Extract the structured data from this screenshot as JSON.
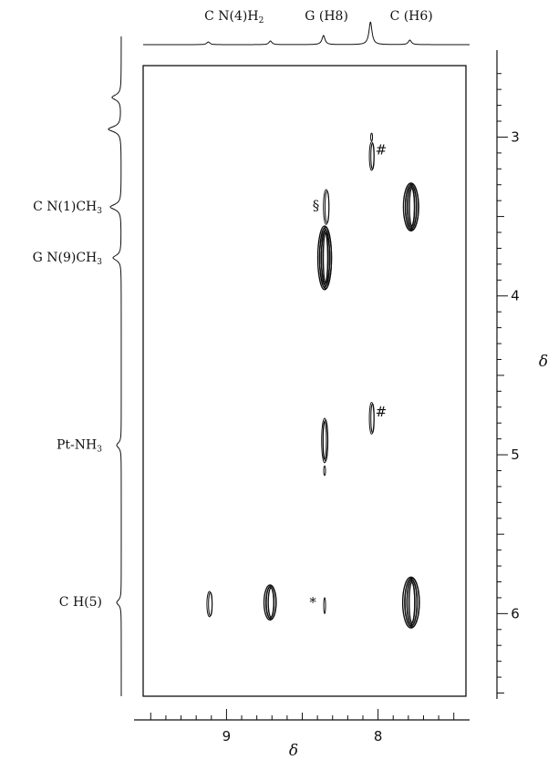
{
  "chart_data": {
    "type": "scatter",
    "title": "",
    "xlabel": "δ",
    "ylabel": "δ",
    "xlim": [
      9.55,
      7.42
    ],
    "ylim": [
      2.55,
      6.52
    ],
    "grid": false,
    "x_ticks": [
      "9",
      "8"
    ],
    "y_ticks": [
      "3",
      "4",
      "5",
      "6"
    ],
    "top_projection_labels": [
      {
        "text": "C N(4)H",
        "sub": "2",
        "x": 8.95
      },
      {
        "text": "G (H8)",
        "sub": "",
        "x": 8.34
      },
      {
        "text": "C (H6)",
        "sub": "",
        "x": 7.78
      }
    ],
    "left_projection_labels": [
      {
        "text": "C N(1)CH",
        "sub": "3",
        "y": 3.44
      },
      {
        "text": "G N(9)CH",
        "sub": "3",
        "y": 3.76
      },
      {
        "text": "Pt-NH",
        "sub": "3",
        "y": 4.94
      },
      {
        "text": "C H(5)",
        "sub": "",
        "y": 5.93
      }
    ],
    "peaks": [
      {
        "x": 8.04,
        "y": 3.12,
        "w": 0.015,
        "h": 0.09,
        "strength": 1
      },
      {
        "x": 8.04,
        "y": 3.0,
        "w": 0.004,
        "h": 0.025,
        "strength": 0.3
      },
      {
        "x": 8.34,
        "y": 3.44,
        "w": 0.018,
        "h": 0.11,
        "strength": 1
      },
      {
        "x": 7.78,
        "y": 3.44,
        "w": 0.05,
        "h": 0.15,
        "strength": 3
      },
      {
        "x": 8.35,
        "y": 3.76,
        "w": 0.045,
        "h": 0.2,
        "strength": 3
      },
      {
        "x": 8.04,
        "y": 4.77,
        "w": 0.015,
        "h": 0.1,
        "strength": 1
      },
      {
        "x": 8.35,
        "y": 4.91,
        "w": 0.02,
        "h": 0.14,
        "strength": 1.5
      },
      {
        "x": 8.35,
        "y": 5.1,
        "w": 0.004,
        "h": 0.03,
        "strength": 0.3
      },
      {
        "x": 9.11,
        "y": 5.94,
        "w": 0.017,
        "h": 0.08,
        "strength": 1
      },
      {
        "x": 8.71,
        "y": 5.93,
        "w": 0.04,
        "h": 0.11,
        "strength": 2
      },
      {
        "x": 8.35,
        "y": 5.95,
        "w": 0.006,
        "h": 0.05,
        "strength": 0.5
      },
      {
        "x": 7.78,
        "y": 5.93,
        "w": 0.055,
        "h": 0.16,
        "strength": 3
      }
    ],
    "annotations": [
      {
        "text": "#",
        "x": 7.98,
        "y": 3.08
      },
      {
        "text": "§",
        "x": 8.41,
        "y": 3.43
      },
      {
        "text": "#",
        "x": 7.98,
        "y": 4.73
      },
      {
        "text": "*",
        "x": 8.43,
        "y": 5.93
      }
    ],
    "top_spectrum_peaks": [
      {
        "x": 9.12,
        "h": 3
      },
      {
        "x": 8.71,
        "h": 4
      },
      {
        "x": 8.36,
        "h": 10
      },
      {
        "x": 8.05,
        "h": 25
      },
      {
        "x": 7.79,
        "h": 5
      }
    ],
    "left_spectrum_peaks": [
      {
        "y": 2.75,
        "h": 10
      },
      {
        "y": 2.95,
        "h": 14
      },
      {
        "y": 3.44,
        "h": 12
      },
      {
        "y": 3.76,
        "h": 9
      },
      {
        "y": 4.94,
        "h": 5
      },
      {
        "y": 5.93,
        "h": 5
      }
    ]
  }
}
